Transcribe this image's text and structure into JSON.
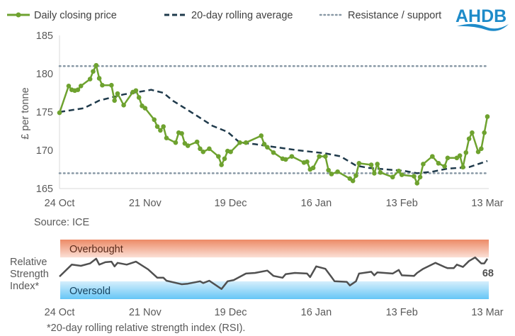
{
  "legend": {
    "price": "Daily closing price",
    "avg": "20-day rolling average",
    "level": "Resistance / support"
  },
  "logo": "AHDB",
  "source": "Source: ICE",
  "footnote": "*20-day rolling relative strength index (RSI).",
  "colors": {
    "price": "#6ea22f",
    "avg": "#1f3a4b",
    "level": "#8797a4",
    "rsi": "#505050",
    "overbought": "#ee8f6c",
    "oversold": "#6cc8f6"
  },
  "chart_data": [
    {
      "type": "line",
      "ylabel": "£ per tonne",
      "ylim": [
        165,
        185
      ],
      "yticks": [
        "165",
        "170",
        "175",
        "180",
        "185"
      ],
      "xticks": [
        "24 Oct",
        "21 Nov",
        "19 Dec",
        "16 Jan",
        "13 Feb",
        "13 Mar"
      ],
      "grid": false,
      "legend_position": "top",
      "series": [
        {
          "name": "Daily closing price",
          "points": [
            [
              "24 Oct",
              174.9
            ],
            [
              "27 Oct",
              178.4
            ],
            [
              "28 Oct",
              177.9
            ],
            [
              "29 Oct",
              177.8
            ],
            [
              "30 Oct",
              177.9
            ],
            [
              "31 Oct",
              178.4
            ],
            [
              "3 Nov",
              179.3
            ],
            [
              "4 Nov",
              180.3
            ],
            [
              "5 Nov",
              181.1
            ],
            [
              "6 Nov",
              179.4
            ],
            [
              "7 Nov",
              178.5
            ],
            [
              "10 Nov",
              178.5
            ],
            [
              "11 Nov",
              176.5
            ],
            [
              "12 Nov",
              177.4
            ],
            [
              "14 Nov",
              175.9
            ],
            [
              "17 Nov",
              177.6
            ],
            [
              "18 Nov",
              177.8
            ],
            [
              "19 Nov",
              176.9
            ],
            [
              "20 Nov",
              175.8
            ],
            [
              "21 Nov",
              175.5
            ],
            [
              "24 Nov",
              174.0
            ],
            [
              "25 Nov",
              173.1
            ],
            [
              "26 Nov",
              172.6
            ],
            [
              "27 Nov",
              173.1
            ],
            [
              "28 Nov",
              171.6
            ],
            [
              "1 Dec",
              171.0
            ],
            [
              "2 Dec",
              172.3
            ],
            [
              "3 Dec",
              172.2
            ],
            [
              "4 Dec",
              170.9
            ],
            [
              "5 Dec",
              170.6
            ],
            [
              "8 Dec",
              171.1
            ],
            [
              "9 Dec",
              170.2
            ],
            [
              "10 Dec",
              169.8
            ],
            [
              "12 Dec",
              170.2
            ],
            [
              "15 Dec",
              169.2
            ],
            [
              "16 Dec",
              168.1
            ],
            [
              "17 Dec",
              168.9
            ],
            [
              "18 Dec",
              169.9
            ],
            [
              "19 Dec",
              169.8
            ],
            [
              "22 Dec",
              171.0
            ],
            [
              "24 Dec",
              171.0
            ],
            [
              "29 Dec",
              171.9
            ],
            [
              "30 Dec",
              170.8
            ],
            [
              "31 Dec",
              170.4
            ],
            [
              "2 Jan",
              169.7
            ],
            [
              "5 Jan",
              168.9
            ],
            [
              "6 Jan",
              168.8
            ],
            [
              "8 Jan",
              169.2
            ],
            [
              "12 Jan",
              168.4
            ],
            [
              "13 Jan",
              168.5
            ],
            [
              "14 Jan",
              167.5
            ],
            [
              "15 Jan",
              167.7
            ],
            [
              "17 Jan",
              169.2
            ],
            [
              "19 Jan",
              169.2
            ],
            [
              "20 Jan",
              167.4
            ],
            [
              "21 Jan",
              166.9
            ],
            [
              "23 Jan",
              167.2
            ],
            [
              "27 Jan",
              166.3
            ],
            [
              "28 Jan",
              166.0
            ],
            [
              "29 Jan",
              166.7
            ],
            [
              "30 Jan",
              168.3
            ],
            [
              "3 Feb",
              168.1
            ],
            [
              "4 Feb",
              167.0
            ],
            [
              "5 Feb",
              168.2
            ],
            [
              "6 Feb",
              167.1
            ],
            [
              "10 Feb",
              166.5
            ],
            [
              "12 Feb",
              167.3
            ],
            [
              "13 Feb",
              166.8
            ],
            [
              "17 Feb",
              166.6
            ],
            [
              "18 Feb",
              165.7
            ],
            [
              "19 Feb",
              166.5
            ],
            [
              "20 Feb",
              168.2
            ],
            [
              "23 Feb",
              169.2
            ],
            [
              "25 Feb",
              168.3
            ],
            [
              "27 Feb",
              167.9
            ],
            [
              "28 Feb",
              169.0
            ],
            [
              "3 Mar",
              169.0
            ],
            [
              "4 Mar",
              169.3
            ],
            [
              "5 Mar",
              167.8
            ],
            [
              "6 Mar",
              169.7
            ],
            [
              "7 Mar",
              171.5
            ],
            [
              "8 Mar",
              172.3
            ],
            [
              "10 Mar",
              169.8
            ],
            [
              "11 Mar",
              170.2
            ],
            [
              "12 Mar",
              172.3
            ],
            [
              "13 Mar",
              174.4
            ]
          ]
        },
        {
          "name": "20-day rolling average",
          "points": [
            [
              "24 Oct",
              175.0
            ],
            [
              "1 Nov",
              175.5
            ],
            [
              "6 Nov",
              176.5
            ],
            [
              "14 Nov",
              177.3
            ],
            [
              "23 Nov",
              177.9
            ],
            [
              "27 Nov",
              177.5
            ],
            [
              "30 Nov",
              176.5
            ],
            [
              "4 Dec",
              175.5
            ],
            [
              "8 Dec",
              174.5
            ],
            [
              "13 Dec",
              173.2
            ],
            [
              "18 Dec",
              172.4
            ],
            [
              "22 Dec",
              171.0
            ],
            [
              "27 Dec",
              170.8
            ],
            [
              "1 Jan",
              170.5
            ],
            [
              "10 Jan",
              170.0
            ],
            [
              "19 Jan",
              169.6
            ],
            [
              "24 Jan",
              169.2
            ],
            [
              "29 Jan",
              168.0
            ],
            [
              "2 Feb",
              167.7
            ],
            [
              "8 Feb",
              167.5
            ],
            [
              "14 Feb",
              167.3
            ],
            [
              "18 Feb",
              167.0
            ],
            [
              "23 Feb",
              167.2
            ],
            [
              "28 Feb",
              167.6
            ],
            [
              "7 Mar",
              167.8
            ],
            [
              "13 Mar",
              168.6
            ]
          ]
        },
        {
          "name": "Resistance / support",
          "levels": [
            181,
            167
          ]
        }
      ]
    },
    {
      "type": "line",
      "ylabel": "Relative Strength Index*",
      "ylim": [
        0,
        100
      ],
      "bands": [
        {
          "label": "Overbought",
          "from": 70,
          "to": 100
        },
        {
          "label": "Oversold",
          "from": 0,
          "to": 30
        }
      ],
      "xticks": [
        "24 Oct",
        "21 Nov",
        "19 Dec",
        "16 Jan",
        "13 Feb",
        "13 Mar"
      ],
      "last_value_label": "68",
      "series": [
        {
          "points": [
            [
              "24 Oct",
              38
            ],
            [
              "28 Oct",
              58
            ],
            [
              "31 Oct",
              56
            ],
            [
              "3 Nov",
              60
            ],
            [
              "5 Nov",
              68
            ],
            [
              "6 Nov",
              58
            ],
            [
              "8 Nov",
              62
            ],
            [
              "10 Nov",
              63
            ],
            [
              "11 Nov",
              55
            ],
            [
              "12 Nov",
              61
            ],
            [
              "15 Nov",
              58
            ],
            [
              "18 Nov",
              63
            ],
            [
              "22 Nov",
              50
            ],
            [
              "25 Nov",
              36
            ],
            [
              "27 Nov",
              36
            ],
            [
              "28 Nov",
              31
            ],
            [
              "3 Dec",
              25
            ],
            [
              "5 Dec",
              26
            ],
            [
              "9 Dec",
              30
            ],
            [
              "10 Dec",
              27
            ],
            [
              "12 Dec",
              31
            ],
            [
              "16 Dec",
              17
            ],
            [
              "18 Dec",
              30
            ],
            [
              "20 Dec",
              32
            ],
            [
              "24 Dec",
              43
            ],
            [
              "27 Dec",
              44
            ],
            [
              "31 Dec",
              48
            ],
            [
              "2 Jan",
              39
            ],
            [
              "5 Jan",
              36
            ],
            [
              "6 Jan",
              42
            ],
            [
              "9 Jan",
              44
            ],
            [
              "13 Jan",
              43
            ],
            [
              "14 Jan",
              37
            ],
            [
              "16 Jan",
              55
            ],
            [
              "19 Jan",
              51
            ],
            [
              "21 Jan",
              37
            ],
            [
              "22 Jan",
              30
            ],
            [
              "26 Jan",
              29
            ],
            [
              "27 Jan",
              23
            ],
            [
              "29 Jan",
              30
            ],
            [
              "30 Jan",
              43
            ],
            [
              "3 Feb",
              46
            ],
            [
              "4 Feb",
              40
            ],
            [
              "5 Feb",
              45
            ],
            [
              "10 Feb",
              43
            ],
            [
              "12 Feb",
              49
            ],
            [
              "13 Feb",
              40
            ],
            [
              "17 Feb",
              39
            ],
            [
              "18 Feb",
              44
            ],
            [
              "20 Feb",
              51
            ],
            [
              "24 Feb",
              61
            ],
            [
              "27 Feb",
              54
            ],
            [
              "28 Feb",
              52
            ],
            [
              "2 Mar",
              52
            ],
            [
              "3 Mar",
              58
            ],
            [
              "5 Mar",
              54
            ],
            [
              "7 Mar",
              64
            ],
            [
              "9 Mar",
              70
            ],
            [
              "11 Mar",
              60
            ],
            [
              "12 Mar",
              60
            ],
            [
              "13 Mar",
              68
            ]
          ]
        }
      ]
    }
  ]
}
